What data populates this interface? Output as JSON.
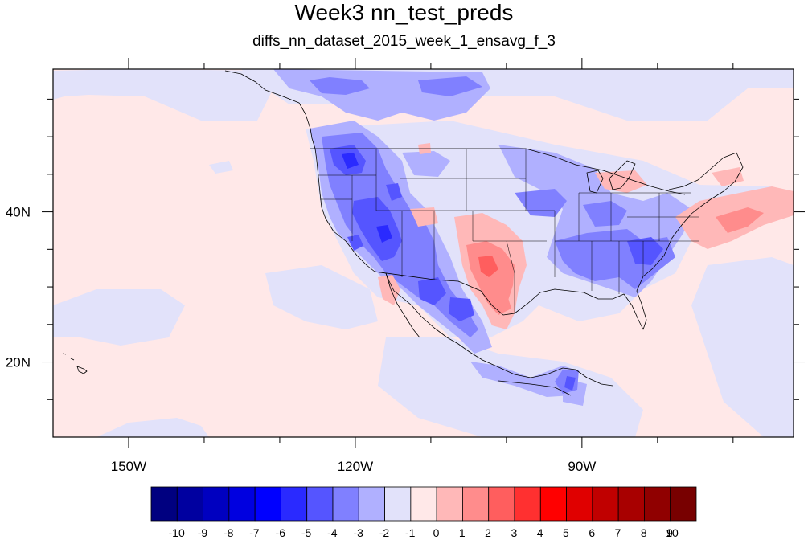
{
  "title": "Week3 nn_test_preds",
  "subtitle": "diffs_nn_dataset_2015_week_1_ensavg_f_3",
  "map": {
    "projection": "cylindrical-equidistant",
    "lon_range": [
      -160,
      -62
    ],
    "lat_range": [
      10,
      59
    ],
    "lon_ticks": [
      {
        "value": -150,
        "label": "150W"
      },
      {
        "value": -120,
        "label": "120W"
      },
      {
        "value": -90,
        "label": "90W"
      }
    ],
    "lat_ticks": [
      {
        "value": 40,
        "label": "40N"
      },
      {
        "value": 20,
        "label": "20N"
      }
    ],
    "background_color": "#ffe8e8"
  },
  "colorbar": {
    "labels": [
      "-10",
      "-9",
      "-8",
      "-7",
      "-6",
      "-5",
      "-4",
      "-3",
      "-2",
      "-1",
      "0",
      "1",
      "2",
      "3",
      "4",
      "5",
      "6",
      "7",
      "8",
      "9",
      "10"
    ],
    "colors": [
      "#000080",
      "#0000a0",
      "#0000c0",
      "#0000e0",
      "#0000ff",
      "#2a2aff",
      "#5555ff",
      "#8080ff",
      "#b0b0ff",
      "#e2e2fa",
      "#ffe8e8",
      "#ffb8b8",
      "#ff8c8c",
      "#ff5e5e",
      "#ff3030",
      "#ff0000",
      "#e00000",
      "#c00000",
      "#a80000",
      "#900000",
      "#780000"
    ]
  }
}
